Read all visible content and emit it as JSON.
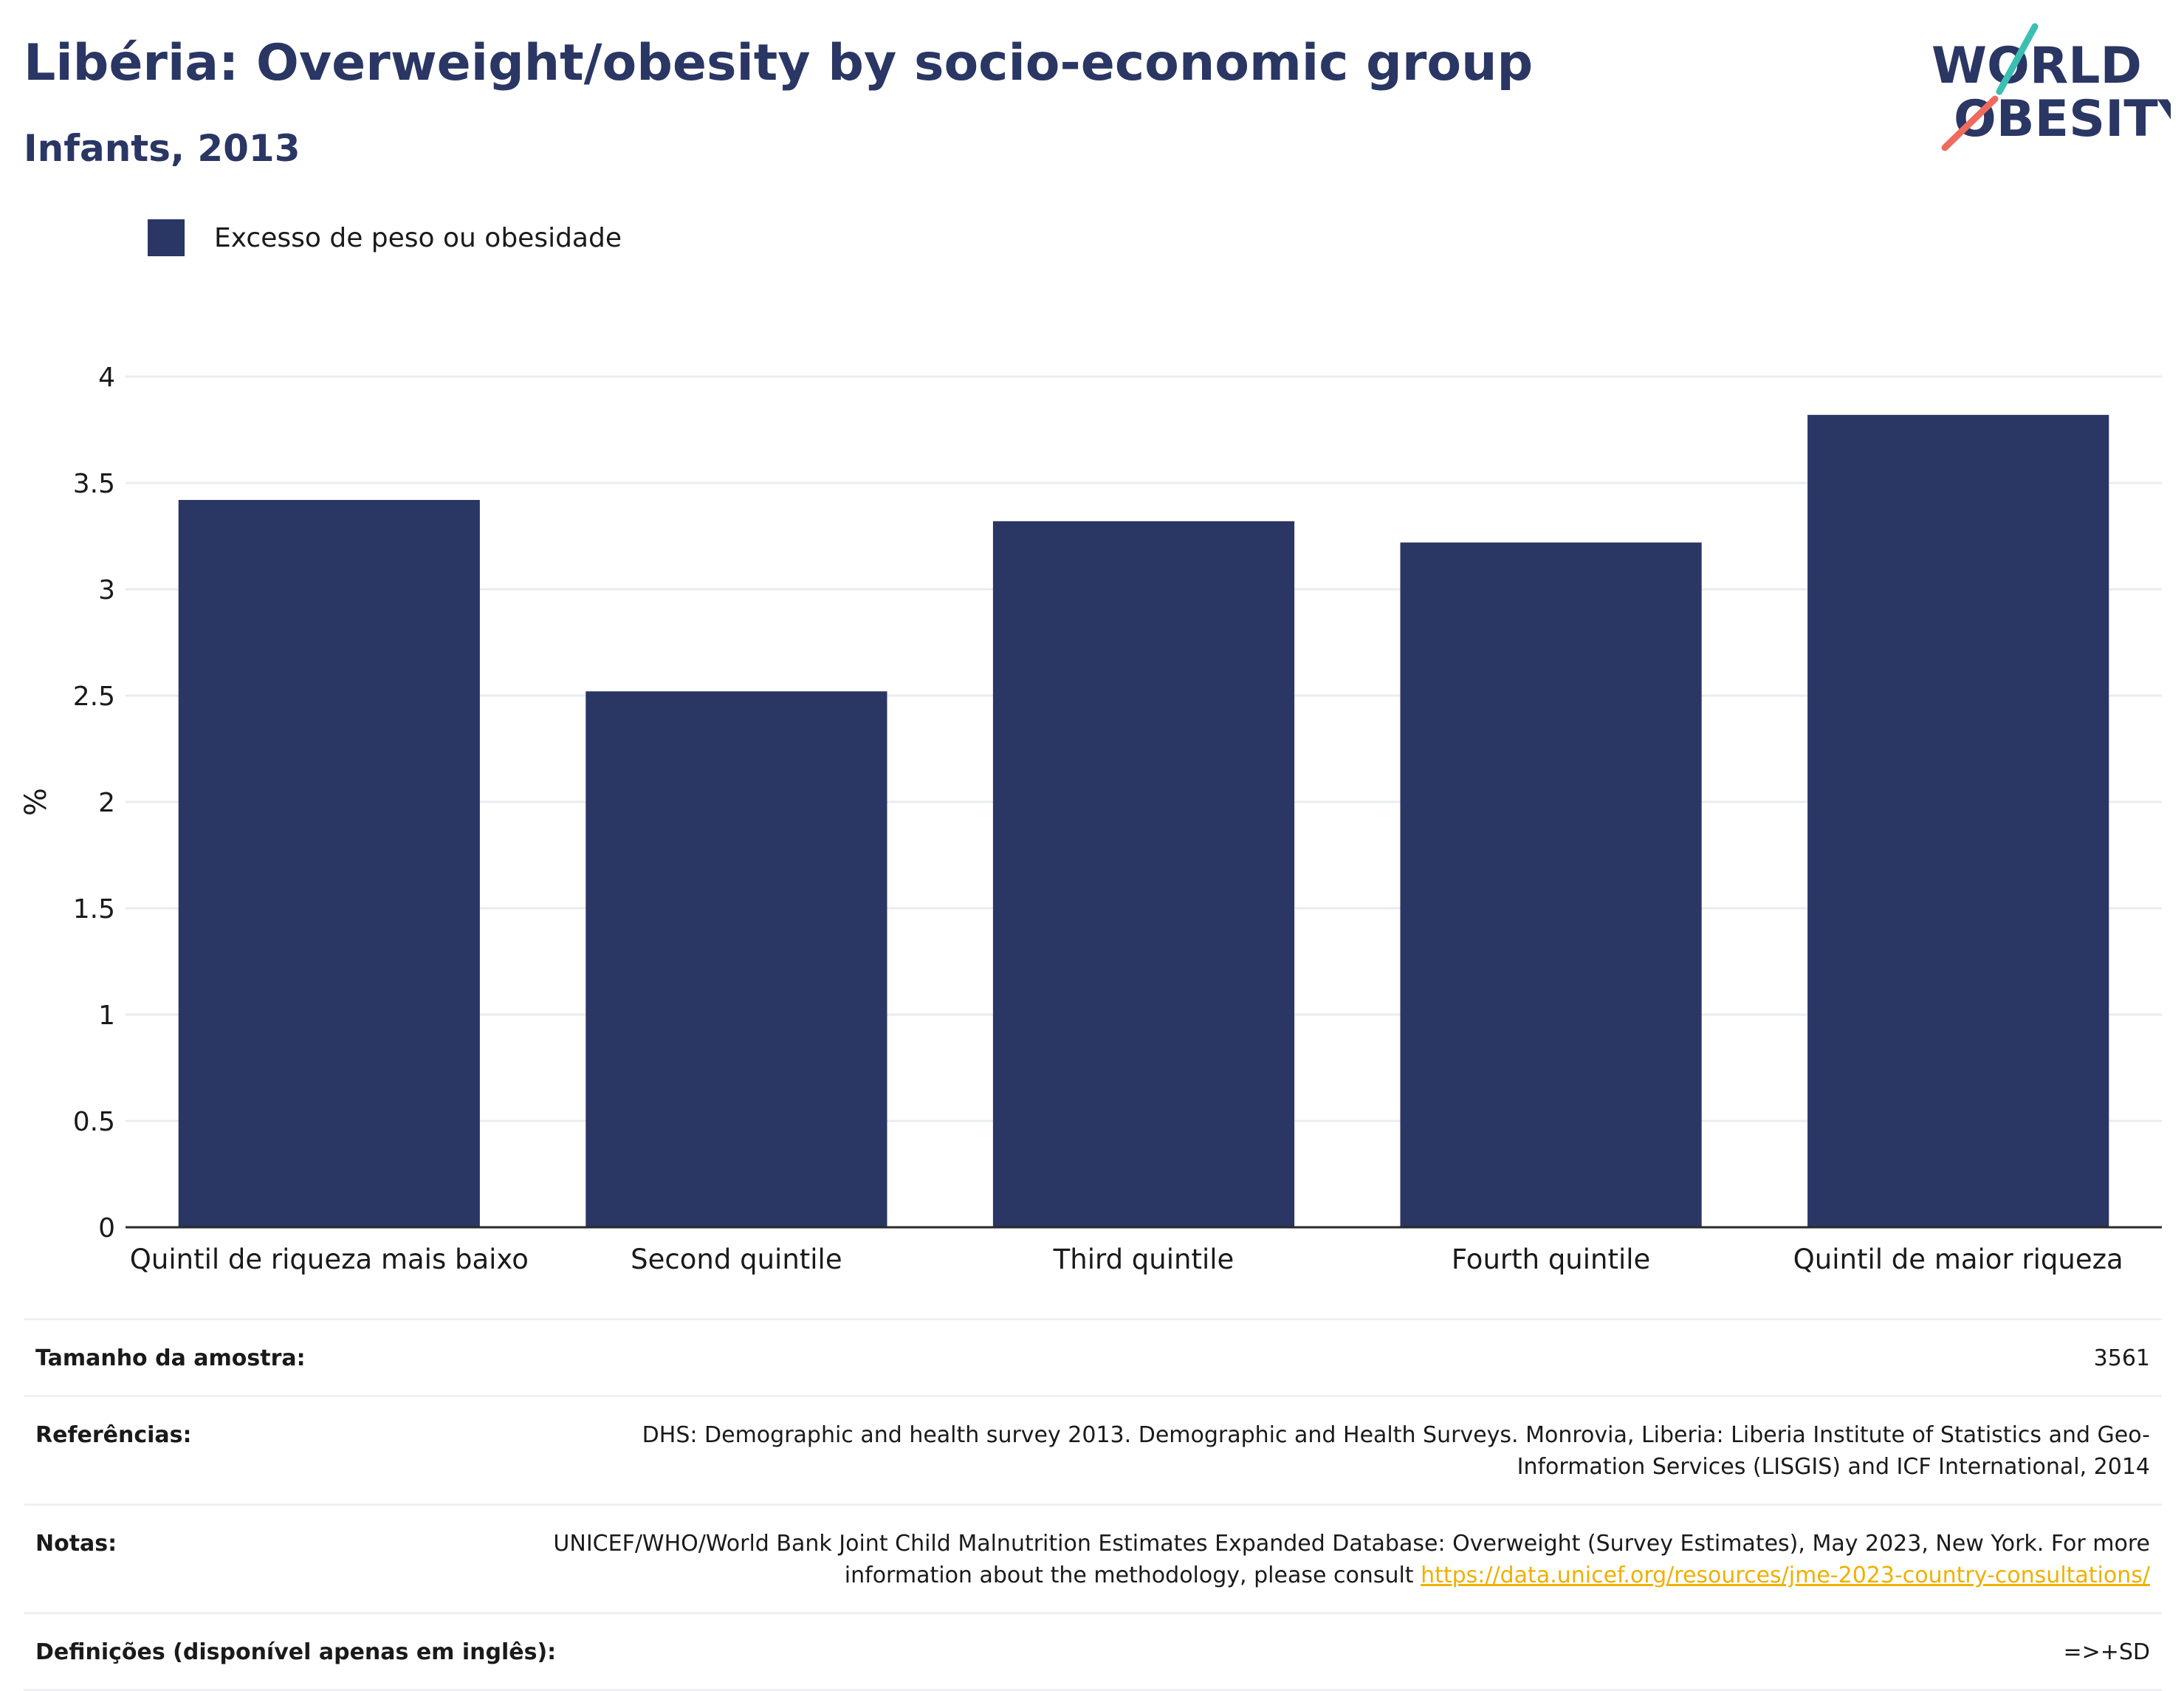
{
  "header": {
    "title": "Libéria: Overweight/obesity by socio-economic group",
    "subtitle": "Infants, 2013"
  },
  "logo": {
    "line1": "WORLD",
    "line2": "OBESITY",
    "accent_teal": "#3bbfb3",
    "accent_coral": "#ee6b5e"
  },
  "colors": {
    "bar": "#2a3663",
    "text": "#2a3663",
    "grid": "#e9ecf1",
    "axis": "#2b2b2b"
  },
  "chart_data": {
    "type": "bar",
    "ylabel": "%",
    "ylim": [
      0,
      4
    ],
    "yticks": [
      0,
      0.5,
      1,
      1.5,
      2,
      2.5,
      3,
      3.5,
      4
    ],
    "categories": [
      "Quintil de riqueza mais baixo",
      "Second quintile",
      "Third quintile",
      "Fourth quintile",
      "Quintil de maior riqueza"
    ],
    "series": [
      {
        "name": "Excesso de peso ou obesidade",
        "values": [
          3.42,
          2.52,
          3.32,
          3.22,
          3.82
        ]
      }
    ],
    "grid": true,
    "legend": "top-left"
  },
  "info": {
    "sample": {
      "label": "Tamanho da amostra:",
      "value": "3561"
    },
    "references": {
      "label": "Referências:",
      "value": "DHS: Demographic and health survey 2013. Demographic and Health Surveys. Monrovia, Liberia: Liberia Institute of Statistics and Geo-Information Services (LISGIS) and ICF International, 2014"
    },
    "notes": {
      "label": "Notas:",
      "value": "UNICEF/WHO/World Bank Joint Child Malnutrition Estimates Expanded Database: Overweight (Survey Estimates), May 2023, New York. For more information about the methodology, please consult ",
      "link": "https://data.unicef.org/resources/jme-2023-country-consultations/"
    },
    "definitions": {
      "label": "Definições (disponível apenas em inglês):",
      "value": "=>+SD"
    }
  }
}
